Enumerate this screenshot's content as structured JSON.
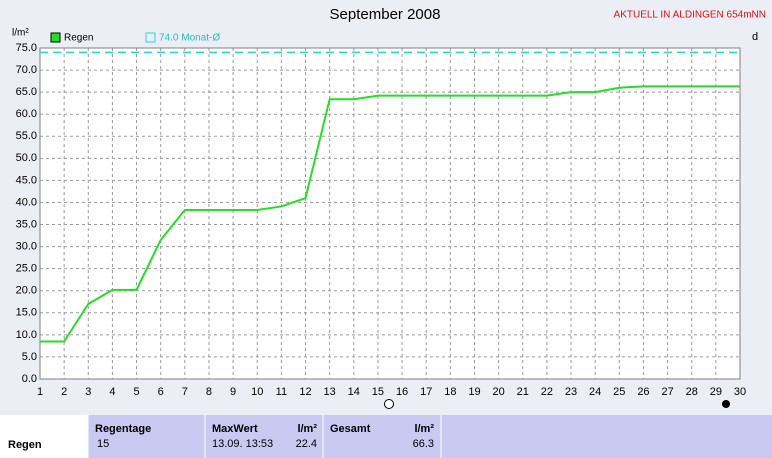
{
  "chart_data": {
    "type": "line",
    "title": "September 2008",
    "subtitle": "AKTUELL IN ALDINGEN 654mNN",
    "y_label": "l/m²",
    "right_label": "d",
    "x": [
      1,
      2,
      3,
      4,
      5,
      6,
      7,
      8,
      9,
      10,
      11,
      12,
      13,
      14,
      15,
      16,
      17,
      18,
      19,
      20,
      21,
      22,
      23,
      24,
      25,
      26,
      27,
      28,
      29,
      30
    ],
    "series": [
      {
        "name": "Regen",
        "color": "#22e022",
        "values": [
          8.5,
          8.5,
          17.0,
          20.2,
          20.2,
          31.5,
          38.3,
          38.3,
          38.3,
          38.3,
          39.1,
          41.0,
          63.4,
          63.4,
          64.2,
          64.2,
          64.2,
          64.2,
          64.2,
          64.2,
          64.2,
          64.2,
          65.0,
          65.0,
          66.0,
          66.3,
          66.3,
          66.3,
          66.3,
          66.3
        ]
      }
    ],
    "reference": {
      "name": "74.0 Monat-Ø",
      "value": 74.0,
      "color": "#22d8d8"
    },
    "xlim": [
      1,
      30
    ],
    "xticks": [
      1,
      2,
      3,
      4,
      5,
      6,
      7,
      8,
      9,
      10,
      11,
      12,
      13,
      14,
      15,
      16,
      17,
      18,
      19,
      20,
      21,
      22,
      23,
      24,
      25,
      26,
      27,
      28,
      29,
      30
    ],
    "ylim": [
      0,
      75
    ],
    "yticks": [
      {
        "value": 0,
        "label": "0.0"
      },
      {
        "value": 5,
        "label": "5.0"
      },
      {
        "value": 10,
        "label": "10.0"
      },
      {
        "value": 15,
        "label": "15.0"
      },
      {
        "value": 20,
        "label": "20.0"
      },
      {
        "value": 25,
        "label": "25.0"
      },
      {
        "value": 30,
        "label": "30.0"
      },
      {
        "value": 35,
        "label": "35.0"
      },
      {
        "value": 40,
        "label": "40.0"
      },
      {
        "value": 45,
        "label": "45.0"
      },
      {
        "value": 50,
        "label": "50.0"
      },
      {
        "value": 55,
        "label": "55.0"
      },
      {
        "value": 60,
        "label": "60.0"
      },
      {
        "value": 65,
        "label": "65.0"
      },
      {
        "value": 70,
        "label": "70.0"
      },
      {
        "value": 75,
        "label": "75.0"
      }
    ],
    "grid": true
  },
  "table": {
    "row_label": "Regen",
    "regentage": {
      "header": "Regentage",
      "value": "15"
    },
    "maxwert": {
      "header": "MaxWert",
      "unit": "l/m²",
      "time": "13.09. 13:53",
      "value": "22.4"
    },
    "gesamt": {
      "header": "Gesamt",
      "unit": "l/m²",
      "value": "66.3"
    }
  }
}
